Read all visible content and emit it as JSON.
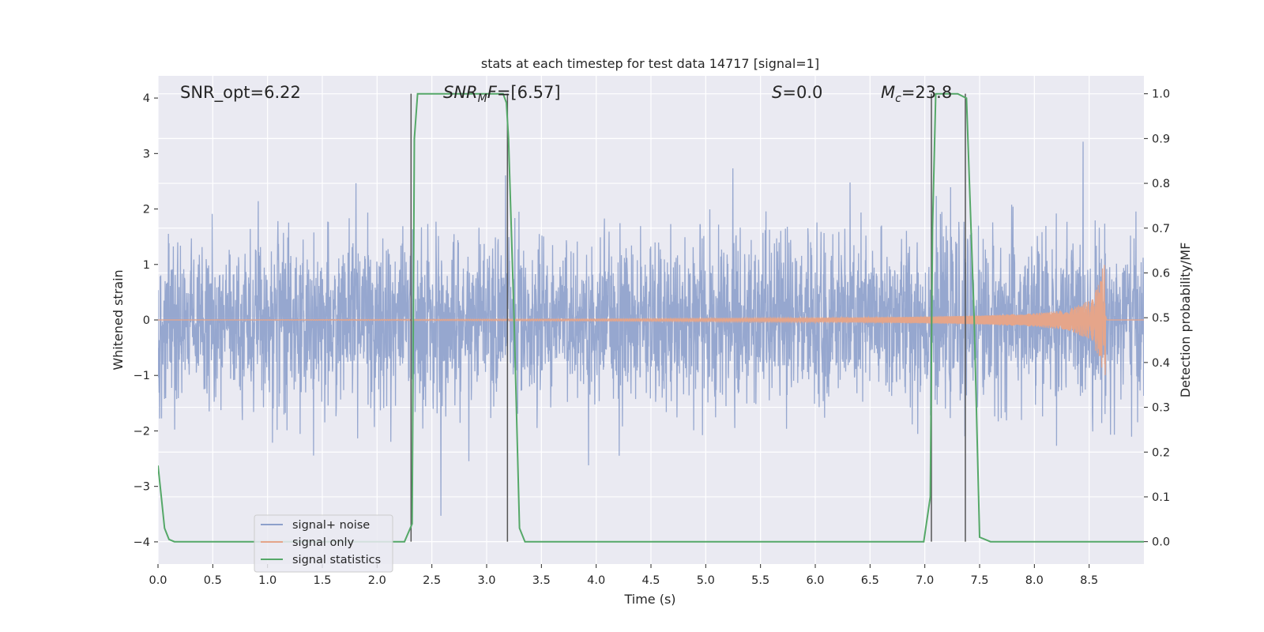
{
  "chart_data": {
    "type": "line",
    "title": "stats at each timestep for test data 14717 [signal=1]",
    "xlabel": "Time (s)",
    "ylabel": "Whitened strain",
    "y2label": "Detection probability/MF",
    "xlim": [
      0,
      9
    ],
    "ylim": [
      -4.4,
      4.4
    ],
    "y2lim": [
      -0.05,
      1.04
    ],
    "x_ticks": [
      0.0,
      0.5,
      1.0,
      1.5,
      2.0,
      2.5,
      3.0,
      3.5,
      4.0,
      4.5,
      5.0,
      5.5,
      6.0,
      6.5,
      7.0,
      7.5,
      8.0,
      8.5
    ],
    "x_tick_labels": [
      "0.0",
      "0.5",
      "1.0",
      "1.5",
      "2.0",
      "2.5",
      "3.0",
      "3.5",
      "4.0",
      "4.5",
      "5.0",
      "5.5",
      "6.0",
      "6.5",
      "7.0",
      "7.5",
      "8.0",
      "8.5"
    ],
    "y_ticks": [
      4,
      3,
      2,
      1,
      0,
      -1,
      -2,
      -3,
      -4
    ],
    "y_tick_labels": [
      "4",
      "3",
      "2",
      "1",
      "0",
      "−1",
      "−2",
      "−3",
      "−4"
    ],
    "y2_ticks": [
      1.0,
      0.9,
      0.8,
      0.7,
      0.6,
      0.5,
      0.4,
      0.3,
      0.2,
      0.1,
      0.0
    ],
    "y2_tick_labels": [
      "1.0",
      "0.9",
      "0.8",
      "0.7",
      "0.6",
      "0.5",
      "0.4",
      "0.3",
      "0.2",
      "0.1",
      "0.0"
    ],
    "grid": true,
    "legend_position": "lower-left",
    "annotations": {
      "snr_opt": "SNR_opt=6.22",
      "snr_mf_main": "SNR",
      "snr_mf_sub": "M",
      "snr_mf_rest": "F=[6.57]",
      "s_italic": "S",
      "s_rest": "=0.0",
      "mc_main": "M",
      "mc_sub": "c",
      "mc_rest": "=23.8"
    },
    "series": [
      {
        "name": "signal+ noise",
        "color": "#8da0cb",
        "description_values": "gaussian noise, amplitude envelope ~±1.6 with spikes to ~±3.6",
        "x_range": [
          0,
          9
        ],
        "noise_sigma": 0.75
      },
      {
        "name": "signal only",
        "color": "#e5a58a",
        "x": [
          0.0,
          4.0,
          5.0,
          6.0,
          7.0,
          7.5,
          8.0,
          8.3,
          8.5,
          8.6,
          8.65
        ],
        "amplitude": [
          0.0,
          0.02,
          0.03,
          0.04,
          0.06,
          0.08,
          0.12,
          0.18,
          0.35,
          0.7,
          1.25
        ]
      },
      {
        "name": "signal statistics",
        "color": "#55a868",
        "x": [
          0.0,
          0.03,
          0.06,
          0.1,
          0.15,
          2.25,
          2.32,
          2.34,
          2.37,
          2.4,
          3.05,
          3.15,
          3.18,
          3.2,
          3.25,
          3.3,
          3.35,
          6.99,
          7.05,
          7.07,
          7.1,
          7.13,
          7.3,
          7.38,
          7.45,
          7.5,
          7.6,
          9.0
        ],
        "y": [
          0.17,
          0.1,
          0.03,
          0.005,
          0.0,
          0.0,
          0.04,
          0.9,
          1.0,
          1.0,
          1.0,
          1.0,
          0.98,
          0.9,
          0.5,
          0.03,
          0.0,
          0.0,
          0.1,
          0.7,
          1.0,
          1.0,
          1.0,
          0.99,
          0.5,
          0.01,
          0.0,
          0.0
        ]
      }
    ],
    "vertical_markers": [
      2.31,
      3.19,
      7.06,
      7.37
    ]
  }
}
